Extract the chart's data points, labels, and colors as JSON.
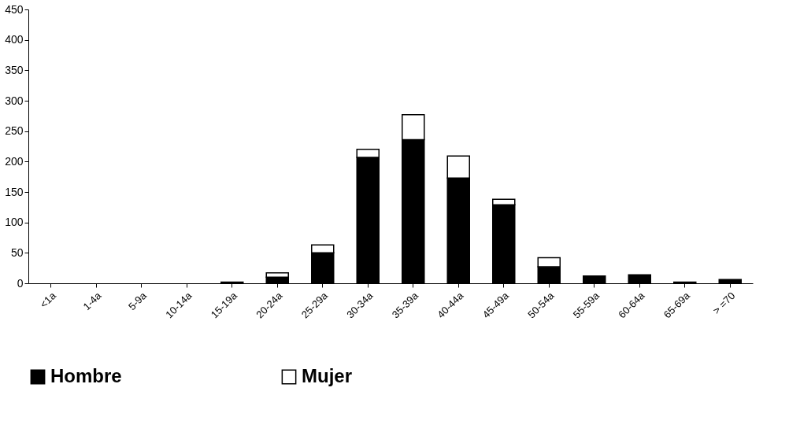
{
  "chart_data": {
    "type": "bar",
    "stacked": true,
    "categories": [
      "<1a",
      "1-4a",
      "5-9a",
      "10-14a",
      "15-19a",
      "20-24a",
      "25-29a",
      "30-34a",
      "35-39a",
      "40-44a",
      "45-49a",
      "50-54a",
      "55-59a",
      "60-64a",
      "65-69a",
      "> =70"
    ],
    "series": [
      {
        "name": "Hombre",
        "color": "#000000",
        "values": [
          0,
          0,
          0,
          0,
          2,
          10,
          50,
          207,
          236,
          173,
          129,
          27,
          12,
          14,
          2,
          6
        ]
      },
      {
        "name": "Mujer",
        "color": "#ffffff",
        "values": [
          0,
          0,
          0,
          0,
          0,
          7,
          13,
          13,
          41,
          36,
          9,
          15,
          0,
          0,
          0,
          0
        ]
      }
    ],
    "ylim": [
      0,
      450
    ],
    "yticks": [
      0,
      50,
      100,
      150,
      200,
      250,
      300,
      350,
      400,
      450
    ],
    "grid": false,
    "legend": "bottom"
  }
}
